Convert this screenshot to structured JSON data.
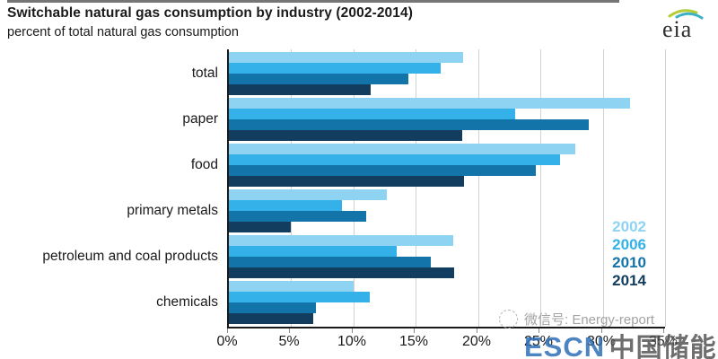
{
  "title": "Switchable natural gas consumption by industry (2002-2014)",
  "subtitle": "percent of total natural gas consumption",
  "logo": {
    "text": "eia"
  },
  "watermark": {
    "wechat_label": "微信号: Energy-report",
    "site_acronym": "ESCN",
    "site_name": "中国储能网"
  },
  "colors": {
    "y2002": "#8ed3f2",
    "y2006": "#33b1e8",
    "y2010": "#1274a8",
    "y2014": "#123d5e",
    "gridline": "#d2d2d2",
    "axis": "#1a1a1a",
    "watermark_blue": "#2e6fb8"
  },
  "legend": {
    "position": "inside-right",
    "entries": [
      {
        "label": "2002",
        "color": "#8ed3f2"
      },
      {
        "label": "2006",
        "color": "#33b1e8"
      },
      {
        "label": "2010",
        "color": "#1274a8"
      },
      {
        "label": "2014",
        "color": "#123d5e"
      }
    ]
  },
  "chart_data": {
    "type": "bar",
    "orientation": "horizontal",
    "title": "Switchable natural gas consumption by industry (2002-2014)",
    "subtitle": "percent of total natural gas consumption",
    "xlabel": "percent of total natural gas consumption",
    "ylabel": "",
    "xlim": [
      0,
      35
    ],
    "x_ticks": [
      "0%",
      "5%",
      "10%",
      "15%",
      "20%",
      "25%",
      "30%",
      "35%"
    ],
    "grid": true,
    "categories": [
      "total",
      "paper",
      "food",
      "primary metals",
      "petroleum and coal products",
      "chemicals"
    ],
    "series": [
      {
        "name": "2002",
        "color": "#8ed3f2",
        "values": [
          18.8,
          32.2,
          27.8,
          12.7,
          18.0,
          10.0
        ]
      },
      {
        "name": "2006",
        "color": "#33b1e8",
        "values": [
          17.0,
          23.0,
          26.6,
          9.1,
          13.5,
          11.3
        ]
      },
      {
        "name": "2010",
        "color": "#1274a8",
        "values": [
          14.4,
          28.9,
          24.6,
          11.0,
          16.2,
          7.0
        ]
      },
      {
        "name": "2014",
        "color": "#123d5e",
        "values": [
          11.4,
          18.7,
          18.9,
          5.0,
          18.1,
          6.8
        ]
      }
    ]
  }
}
